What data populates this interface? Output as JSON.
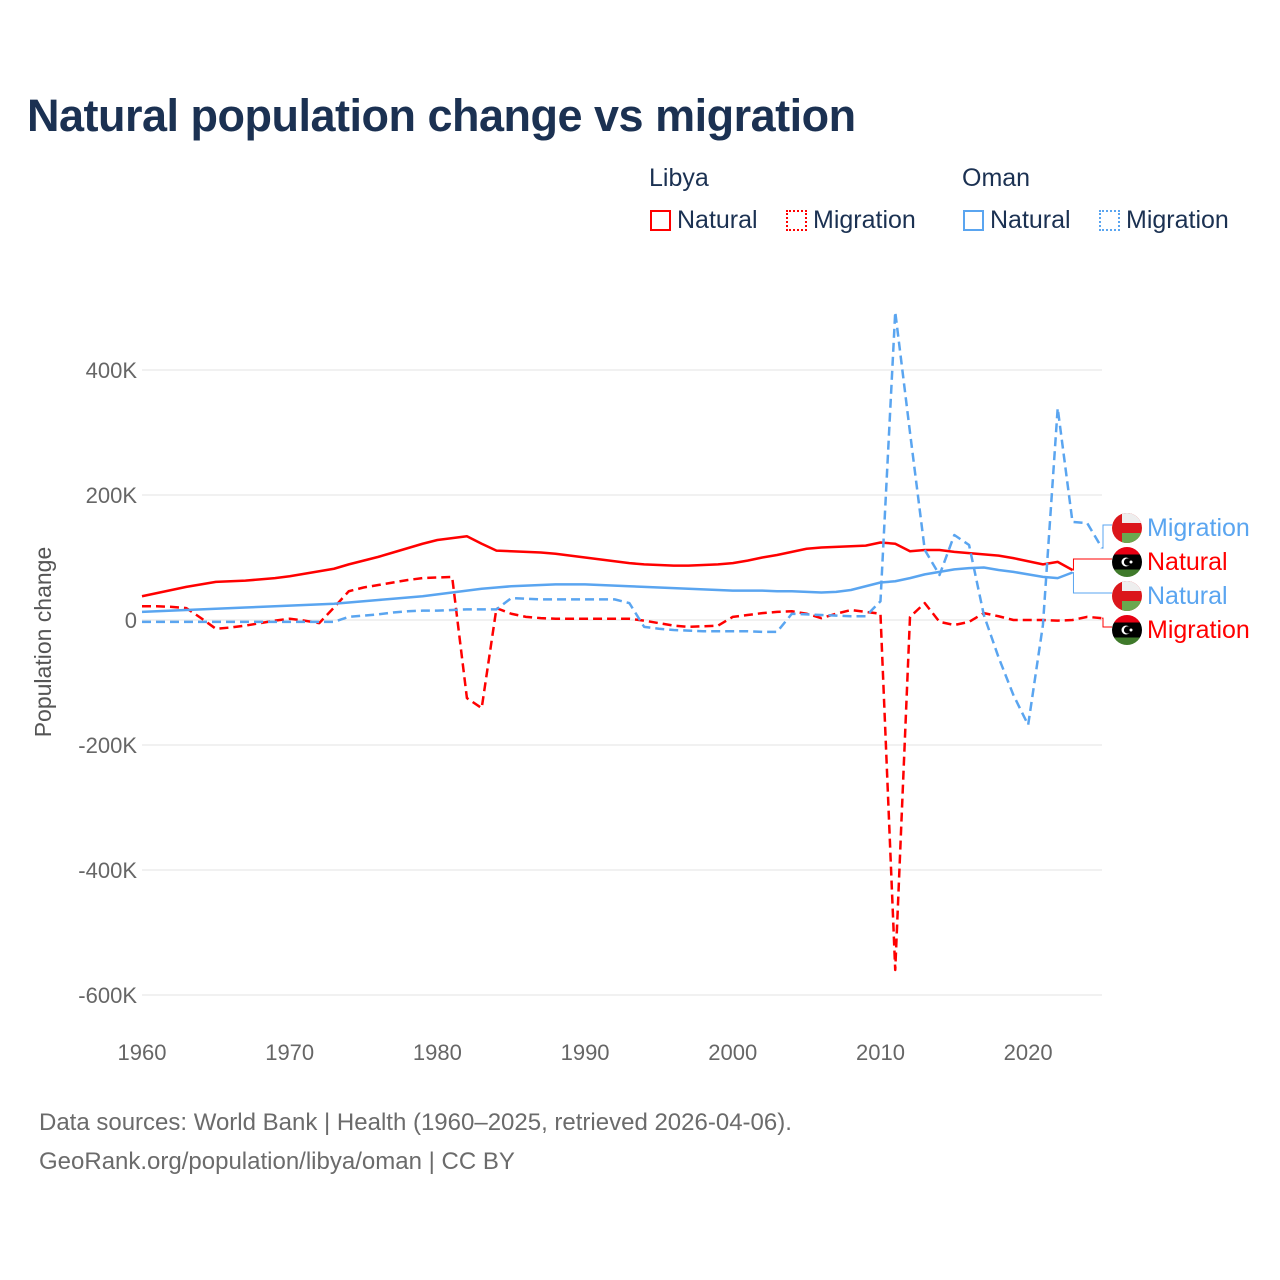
{
  "title": "Natural population change vs migration",
  "legend": {
    "groups": [
      {
        "name": "Libya",
        "color": "#ff0000",
        "items": [
          "Natural",
          "Migration"
        ]
      },
      {
        "name": "Oman",
        "color": "#5aa5f0",
        "items": [
          "Natural",
          "Migration"
        ]
      }
    ]
  },
  "footer": {
    "line1": "Data sources: World Bank | Health (1960–2025, retrieved 2026-04-06).",
    "line2": "GeoRank.org/population/libya/oman | CC BY"
  },
  "chart_data": {
    "type": "line",
    "title": "Natural population change vs migration",
    "xlabel": "",
    "ylabel": "Population change",
    "xlim": [
      1960,
      2025
    ],
    "ylim": [
      -600000,
      400000
    ],
    "x_ticks": [
      1960,
      1970,
      1980,
      1990,
      2000,
      2010,
      2020
    ],
    "x_tick_labels": [
      "1960",
      "1970",
      "1980",
      "1990",
      "2000",
      "2010",
      "2020"
    ],
    "y_ticks": [
      400000,
      200000,
      0,
      -200000,
      -400000,
      -600000
    ],
    "y_tick_labels": [
      "400K",
      "200K",
      "0",
      "-200K",
      "-400K",
      "-600K"
    ],
    "grid": true,
    "legend_position": "top-right",
    "series": [
      {
        "name": "Libya Natural",
        "label": "Natural",
        "country": "Libya",
        "color": "#ff0000",
        "dash": false,
        "start": 1960,
        "values": [
          38,
          43,
          48,
          53,
          57,
          61,
          62,
          63,
          65,
          67,
          70,
          74,
          78,
          82,
          89,
          95,
          101,
          108,
          115,
          122,
          128,
          131,
          134,
          122,
          111,
          110,
          109,
          108,
          106,
          103,
          100,
          97,
          94,
          91,
          89,
          88,
          87,
          87,
          88,
          89,
          91,
          95,
          100,
          104,
          109,
          114,
          116,
          117,
          118,
          119,
          124,
          122,
          110,
          112,
          112,
          109,
          107,
          105,
          103,
          99,
          94,
          89,
          93,
          80
        ]
      },
      {
        "name": "Libya Migration",
        "label": "Migration",
        "country": "Libya",
        "color": "#ff0000",
        "dash": true,
        "start": 1960,
        "values": [
          22,
          22,
          21,
          19,
          3,
          -14,
          -12,
          -9,
          -5,
          -1,
          2,
          -1,
          -5,
          20,
          46,
          52,
          56,
          60,
          64,
          67,
          68,
          69,
          -125,
          -141,
          19,
          10,
          5,
          3,
          2,
          2,
          2,
          2,
          2,
          2,
          -1,
          -5,
          -9,
          -11,
          -10,
          -9,
          5,
          8,
          11,
          13,
          14,
          10,
          3,
          10,
          16,
          13,
          10,
          -560,
          5,
          27,
          -3,
          -8,
          -3,
          11,
          6,
          0,
          0,
          0,
          -1,
          0,
          5,
          3
        ]
      },
      {
        "name": "Oman Natural",
        "label": "Natural",
        "country": "Oman",
        "color": "#5aa5f0",
        "dash": false,
        "start": 1960,
        "values": [
          13,
          14,
          15,
          16,
          17,
          18,
          19,
          20,
          21,
          22,
          23,
          24,
          25,
          26,
          28,
          30,
          32,
          34,
          36,
          38,
          41,
          44,
          47,
          50,
          52,
          54,
          55,
          56,
          57,
          57,
          57,
          56,
          55,
          54,
          53,
          52,
          51,
          50,
          49,
          48,
          47,
          47,
          47,
          46,
          46,
          45,
          44,
          45,
          48,
          54,
          60,
          62,
          67,
          73,
          77,
          81,
          83,
          84,
          80,
          77,
          73,
          69,
          67,
          76
        ]
      },
      {
        "name": "Oman Migration",
        "label": "Migration",
        "country": "Oman",
        "color": "#5aa5f0",
        "dash": true,
        "start": 1960,
        "values": [
          -3,
          -3,
          -3,
          -3,
          -3,
          -3,
          -3,
          -3,
          -3,
          -3,
          -3,
          -3,
          -3,
          -3,
          5,
          7,
          9,
          12,
          14,
          15,
          15,
          16,
          17,
          17,
          17,
          35,
          34,
          33,
          33,
          33,
          33,
          33,
          33,
          27,
          -11,
          -14,
          -16,
          -17,
          -18,
          -18,
          -18,
          -18,
          -19,
          -19,
          10,
          9,
          8,
          7,
          6,
          6,
          30,
          493,
          300,
          112,
          72,
          136,
          120,
          8,
          -60,
          -120,
          -168,
          -8,
          339,
          157,
          155,
          115
        ]
      }
    ],
    "units": "thousands",
    "end_labels": [
      "Migration",
      "Natural",
      "Natural",
      "Migration"
    ]
  }
}
